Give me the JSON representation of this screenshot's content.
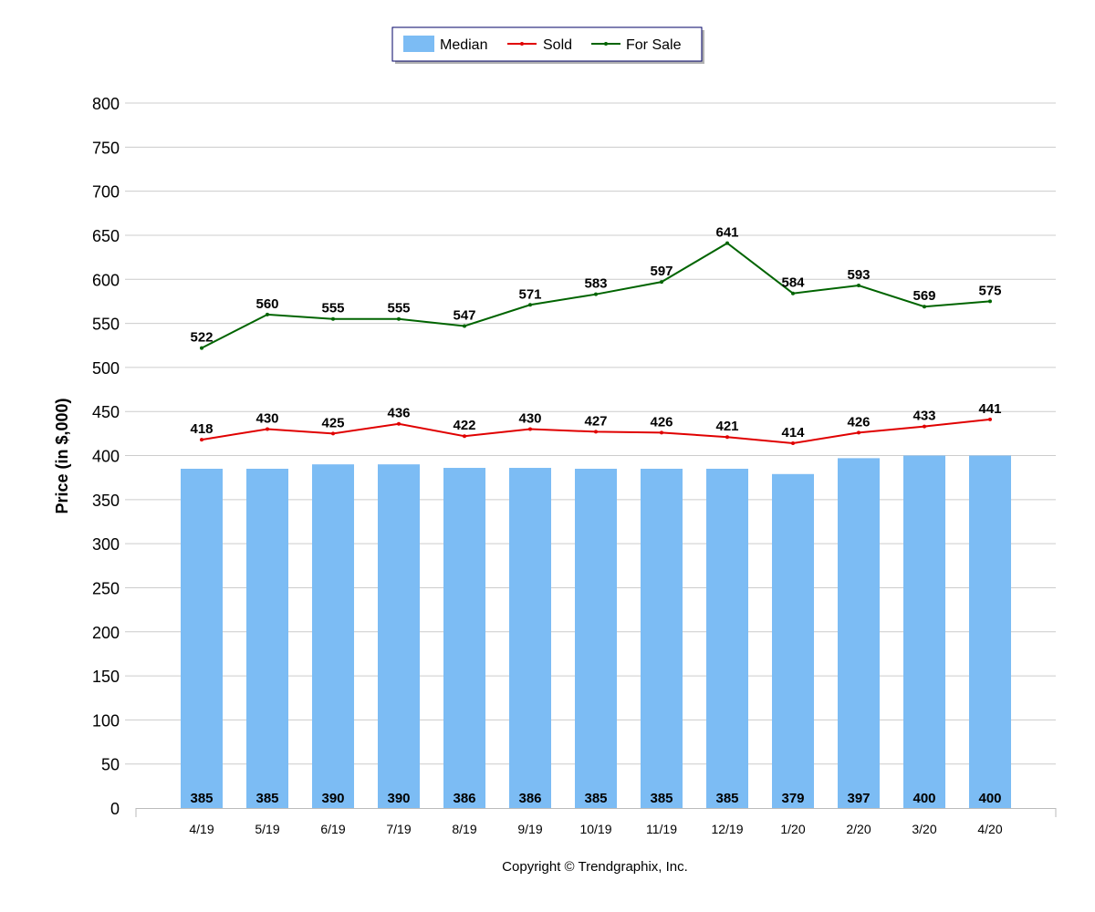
{
  "colors": {
    "median": "#7cbcf4",
    "sold": "#e00000",
    "for_sale": "#006400",
    "grid": "#cccccc",
    "axis": "#bbbbbb"
  },
  "legend": {
    "items": [
      {
        "label": "Median",
        "kind": "bar"
      },
      {
        "label": "Sold",
        "kind": "line"
      },
      {
        "label": "For Sale",
        "kind": "line"
      }
    ]
  },
  "footer": {
    "copyright": "Copyright © Trendgraphix, Inc."
  },
  "chart_data": {
    "type": "bar",
    "title": "",
    "xlabel": "",
    "ylabel": "Price (in $,000)",
    "ylim": [
      0,
      800
    ],
    "y_ticks": [
      0,
      50,
      100,
      150,
      200,
      250,
      300,
      350,
      400,
      450,
      500,
      550,
      600,
      650,
      700,
      750,
      800
    ],
    "grid": true,
    "legend_position": "top-center",
    "categories": [
      "4/19",
      "5/19",
      "6/19",
      "7/19",
      "8/19",
      "9/19",
      "10/19",
      "11/19",
      "12/19",
      "1/20",
      "2/20",
      "3/20",
      "4/20"
    ],
    "series": [
      {
        "name": "Median",
        "type": "bar",
        "values": [
          385,
          385,
          390,
          390,
          386,
          386,
          385,
          385,
          385,
          379,
          397,
          400,
          400
        ]
      },
      {
        "name": "Sold",
        "type": "line",
        "values": [
          418,
          430,
          425,
          436,
          422,
          430,
          427,
          426,
          421,
          414,
          426,
          433,
          441
        ]
      },
      {
        "name": "For Sale",
        "type": "line",
        "values": [
          522,
          560,
          555,
          555,
          547,
          571,
          583,
          597,
          641,
          584,
          593,
          569,
          575
        ]
      }
    ]
  }
}
